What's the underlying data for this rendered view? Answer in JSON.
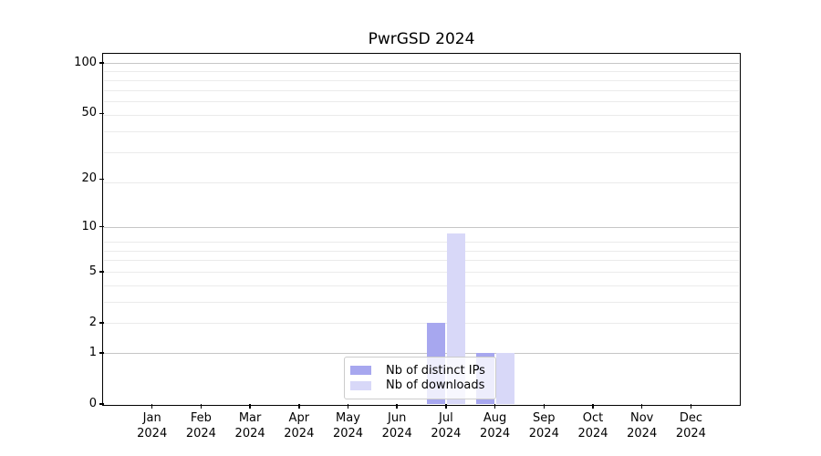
{
  "chart": {
    "title": "PwrGSD 2024",
    "legend": {
      "entries": [
        {
          "label": "Nb of distinct IPs"
        },
        {
          "label": "Nb of downloads"
        }
      ]
    },
    "chart_data": {
      "type": "bar",
      "categories": [
        "Jan",
        "Feb",
        "Mar",
        "Apr",
        "May",
        "Jun",
        "Jul",
        "Aug",
        "Sep",
        "Oct",
        "Nov",
        "Dec"
      ],
      "category_year": "2024",
      "series": [
        {
          "name": "Nb of distinct IPs",
          "color": "#a7a7ef",
          "values": [
            0,
            0,
            0,
            0,
            0,
            0,
            2,
            1,
            0,
            0,
            0,
            0
          ]
        },
        {
          "name": "Nb of downloads",
          "color": "#d8d8f8",
          "values": [
            0,
            0,
            0,
            0,
            0,
            0,
            9,
            1,
            0,
            0,
            0,
            0
          ]
        }
      ],
      "title": "PwrGSD 2024",
      "xlabel": "",
      "ylabel": "",
      "y_scale": "log1p",
      "ylim": [
        0,
        112
      ],
      "y_ticks": [
        0,
        1,
        2,
        5,
        10,
        20,
        50,
        100
      ],
      "major_grid_values": [
        1,
        10,
        100
      ],
      "minor_grid_values": [
        2,
        3,
        4,
        5,
        6,
        7,
        8,
        19,
        29,
        39,
        49,
        59,
        69,
        79,
        89
      ],
      "grid": true,
      "legend_position": "bottom-center"
    },
    "colors": {
      "major_grid": "#c6c6c6",
      "minor_grid": "#ebebeb",
      "spine": "#000000",
      "legend_border": "#cccccc"
    }
  }
}
